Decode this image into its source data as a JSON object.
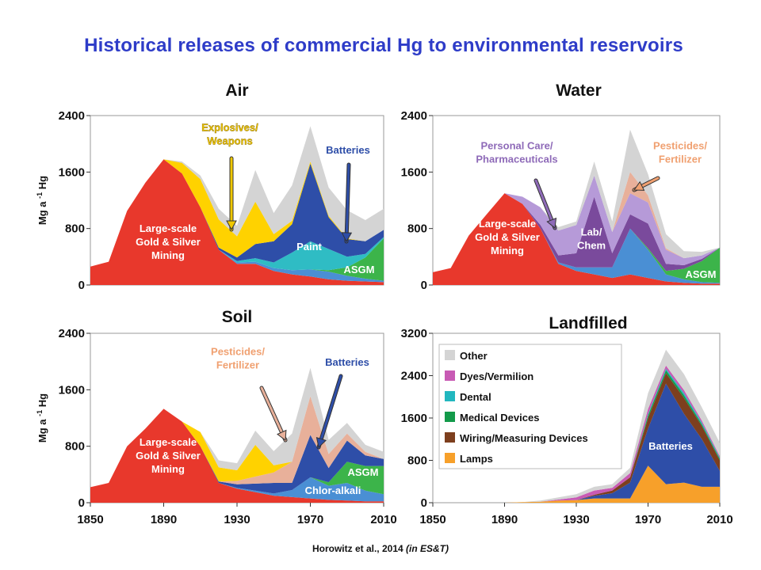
{
  "title": "Historical releases of commercial Hg to environmental reservoirs",
  "citation": "Horowitz et al., 2014 (in ES&T)",
  "colors": {
    "Large-scale Gold & Silver Mining": "#e8382c",
    "Explosives/Weapons": "#ffd200",
    "Chlor-alkali": "#4a8fd4",
    "Batteries": "#2e4ea8",
    "Paint": "#2fbcc4",
    "ASGM": "#3cb44a",
    "Personal Care/Pharmaceuticals": "#b69ad8",
    "Pesticides/Fertilizer": "#e8b09a",
    "Lab/Chem": "#7a4a9c",
    "Lamps": "#f7a02a",
    "Wiring/Measuring Devices": "#7d3f1e",
    "Medical Devices": "#139a4a",
    "Dental": "#22b7bf",
    "Dyes/Vermilion": "#c85ab4",
    "Other": "#d4d4d4"
  },
  "chart_data": [
    {
      "type": "area",
      "stacked": true,
      "title": "Air",
      "ylabel": "Mg a-1 Hg",
      "ylim": [
        0,
        2400
      ],
      "yticks": [
        0,
        800,
        1600,
        2400
      ],
      "x": [
        1850,
        1860,
        1870,
        1880,
        1890,
        1900,
        1910,
        1920,
        1930,
        1940,
        1950,
        1960,
        1970,
        1980,
        1990,
        2000,
        2010
      ],
      "series": [
        {
          "name": "Large-scale Gold & Silver Mining",
          "values": [
            260,
            330,
            1050,
            1450,
            1780,
            1580,
            1100,
            500,
            300,
            300,
            200,
            150,
            120,
            80,
            60,
            50,
            40
          ]
        },
        {
          "name": "Chlor-alkali",
          "values": [
            0,
            0,
            0,
            0,
            0,
            0,
            0,
            0,
            20,
            30,
            40,
            60,
            100,
            110,
            70,
            40,
            20
          ]
        },
        {
          "name": "ASGM",
          "values": [
            0,
            0,
            0,
            0,
            0,
            0,
            0,
            0,
            0,
            0,
            0,
            0,
            0,
            20,
            120,
            300,
            600
          ]
        },
        {
          "name": "Paint",
          "values": [
            0,
            0,
            0,
            0,
            0,
            0,
            0,
            0,
            20,
            50,
            80,
            250,
            400,
            300,
            150,
            50,
            20
          ]
        },
        {
          "name": "Batteries",
          "values": [
            0,
            0,
            0,
            0,
            0,
            0,
            0,
            30,
            50,
            200,
            300,
            400,
            1100,
            450,
            250,
            180,
            100
          ]
        },
        {
          "name": "Explosives/Weapons",
          "values": [
            0,
            0,
            0,
            0,
            0,
            150,
            400,
            400,
            300,
            600,
            100,
            50,
            30,
            20,
            10,
            0,
            0
          ]
        },
        {
          "name": "Other",
          "values": [
            0,
            0,
            0,
            0,
            0,
            20,
            50,
            150,
            150,
            450,
            300,
            500,
            500,
            400,
            400,
            300,
            300
          ]
        }
      ],
      "annotations": [
        "Explosives/ Weapons",
        "Batteries",
        "Large-scale Gold & Silver Mining",
        "Paint",
        "ASGM"
      ]
    },
    {
      "type": "area",
      "stacked": true,
      "title": "Water",
      "ylabel": "",
      "ylim": [
        0,
        2400
      ],
      "yticks": [
        0,
        800,
        1600,
        2400
      ],
      "x": [
        1850,
        1860,
        1870,
        1880,
        1890,
        1900,
        1910,
        1920,
        1930,
        1940,
        1950,
        1960,
        1970,
        1980,
        1990,
        2000,
        2010
      ],
      "series": [
        {
          "name": "Large-scale Gold & Silver Mining",
          "values": [
            180,
            240,
            700,
            1000,
            1300,
            1150,
            800,
            300,
            200,
            150,
            100,
            150,
            100,
            50,
            30,
            20,
            20
          ]
        },
        {
          "name": "Chlor-alkali",
          "values": [
            0,
            0,
            0,
            0,
            0,
            0,
            0,
            20,
            50,
            100,
            150,
            650,
            400,
            100,
            50,
            20,
            10
          ]
        },
        {
          "name": "ASGM",
          "values": [
            0,
            0,
            0,
            0,
            0,
            0,
            0,
            0,
            0,
            0,
            0,
            0,
            20,
            50,
            150,
            300,
            500
          ]
        },
        {
          "name": "Lab/Chem",
          "values": [
            0,
            0,
            0,
            0,
            0,
            0,
            50,
            100,
            200,
            1000,
            200,
            200,
            350,
            100,
            50,
            30,
            0
          ]
        },
        {
          "name": "Personal Care/Pharmaceuticals",
          "values": [
            0,
            0,
            0,
            0,
            0,
            100,
            250,
            350,
            400,
            300,
            300,
            300,
            300,
            200,
            100,
            50,
            0
          ]
        },
        {
          "name": "Pesticides/Fertilizer",
          "values": [
            0,
            0,
            0,
            0,
            0,
            0,
            0,
            0,
            0,
            0,
            0,
            300,
            100,
            20,
            0,
            0,
            0
          ]
        },
        {
          "name": "Other",
          "values": [
            0,
            0,
            0,
            0,
            0,
            0,
            0,
            50,
            50,
            200,
            150,
            600,
            300,
            200,
            100,
            50,
            0
          ]
        }
      ],
      "annotations": [
        "Personal Care/ Pharmaceuticals",
        "Pesticides/ Fertilizer",
        "Large-scale Gold & Silver Mining",
        "Lab/ Chem",
        "ASGM"
      ]
    },
    {
      "type": "area",
      "stacked": true,
      "title": "Soil",
      "ylabel": "Mg a-1 Hg",
      "ylim": [
        0,
        2400
      ],
      "yticks": [
        0,
        800,
        1600,
        2400
      ],
      "x": [
        1850,
        1860,
        1870,
        1880,
        1890,
        1900,
        1910,
        1920,
        1930,
        1940,
        1950,
        1960,
        1970,
        1980,
        1990,
        2000,
        2010
      ],
      "series": [
        {
          "name": "Large-scale Gold & Silver Mining",
          "values": [
            220,
            280,
            800,
            1050,
            1330,
            1150,
            800,
            280,
            200,
            150,
            100,
            80,
            60,
            40,
            30,
            20,
            20
          ]
        },
        {
          "name": "Chlor-alkali",
          "values": [
            0,
            0,
            0,
            0,
            0,
            0,
            0,
            0,
            10,
            20,
            30,
            100,
            300,
            200,
            250,
            150,
            100
          ]
        },
        {
          "name": "ASGM",
          "values": [
            0,
            0,
            0,
            0,
            0,
            0,
            0,
            0,
            0,
            0,
            0,
            0,
            0,
            50,
            300,
            350,
            400
          ]
        },
        {
          "name": "Batteries",
          "values": [
            0,
            0,
            0,
            0,
            0,
            0,
            0,
            20,
            50,
            100,
            150,
            100,
            600,
            200,
            300,
            150,
            100
          ]
        },
        {
          "name": "Pesticides/Fertilizer",
          "values": [
            0,
            0,
            0,
            0,
            0,
            0,
            0,
            0,
            50,
            100,
            150,
            300,
            550,
            200,
            100,
            50,
            0
          ]
        },
        {
          "name": "Explosives/Weapons",
          "values": [
            0,
            0,
            0,
            0,
            0,
            0,
            200,
            200,
            150,
            450,
            100,
            0,
            0,
            0,
            0,
            0,
            0
          ]
        },
        {
          "name": "Other",
          "values": [
            0,
            0,
            0,
            0,
            0,
            0,
            0,
            100,
            100,
            200,
            200,
            400,
            400,
            200,
            150,
            100,
            100
          ]
        }
      ],
      "annotations": [
        "Pesticides/ Fertilizer",
        "Batteries",
        "Large-scale Gold & Silver Mining",
        "ASGM",
        "Chlor-alkali"
      ]
    },
    {
      "type": "area",
      "stacked": true,
      "title": "Landfilled",
      "ylabel": "",
      "ylim": [
        0,
        3200
      ],
      "yticks": [
        0,
        800,
        1600,
        2400,
        3200
      ],
      "x": [
        1850,
        1860,
        1870,
        1880,
        1890,
        1900,
        1910,
        1920,
        1930,
        1940,
        1950,
        1960,
        1970,
        1980,
        1990,
        2000,
        2010
      ],
      "legend": [
        "Other",
        "Dyes/Vermilion",
        "Dental",
        "Medical Devices",
        "Wiring/Measuring Devices",
        "Lamps"
      ],
      "legend_position": "top-left",
      "series": [
        {
          "name": "Lamps",
          "values": [
            0,
            0,
            0,
            0,
            0,
            10,
            20,
            40,
            50,
            80,
            80,
            80,
            700,
            350,
            380,
            300,
            300
          ]
        },
        {
          "name": "Batteries",
          "values": [
            0,
            0,
            0,
            0,
            0,
            0,
            0,
            0,
            0,
            50,
            100,
            300,
            700,
            1900,
            1300,
            900,
            300
          ]
        },
        {
          "name": "Wiring/Measuring Devices",
          "values": [
            0,
            0,
            0,
            0,
            0,
            0,
            0,
            0,
            0,
            20,
            50,
            100,
            200,
            200,
            300,
            250,
            200
          ]
        },
        {
          "name": "Medical Devices",
          "values": [
            0,
            0,
            0,
            0,
            0,
            0,
            0,
            0,
            0,
            0,
            0,
            0,
            50,
            50,
            50,
            30,
            30
          ]
        },
        {
          "name": "Dental",
          "values": [
            0,
            0,
            0,
            0,
            0,
            0,
            0,
            0,
            0,
            0,
            0,
            0,
            20,
            30,
            40,
            30,
            20
          ]
        },
        {
          "name": "Dyes/Vermilion",
          "values": [
            0,
            0,
            0,
            0,
            0,
            0,
            0,
            20,
            50,
            80,
            50,
            80,
            100,
            60,
            60,
            40,
            30
          ]
        },
        {
          "name": "Other",
          "values": [
            0,
            0,
            0,
            0,
            0,
            0,
            20,
            40,
            60,
            70,
            70,
            100,
            300,
            300,
            300,
            250,
            250
          ]
        }
      ],
      "annotations": [
        "Batteries"
      ]
    }
  ],
  "x_axis": {
    "ticks": [
      1850,
      1890,
      1930,
      1970,
      2010
    ]
  }
}
